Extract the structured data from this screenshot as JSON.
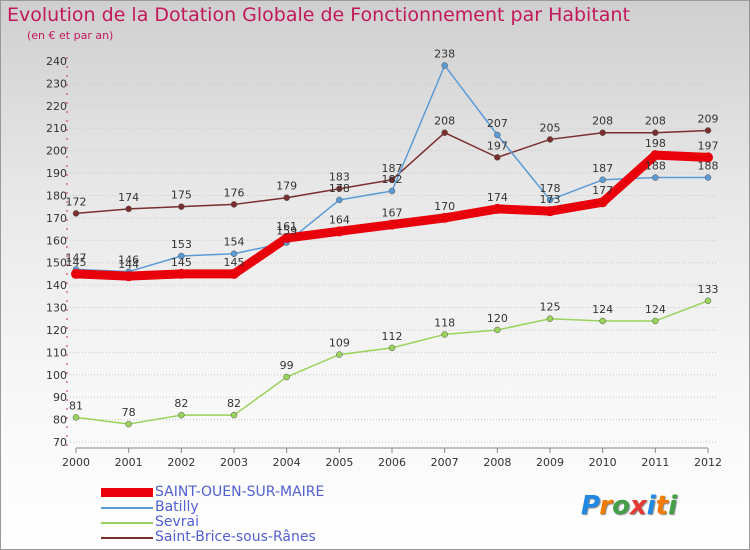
{
  "header": {
    "title": "Evolution de la Dotation Globale de Fonctionnement par Habitant",
    "subtitle": "(en € et par an)"
  },
  "logo": {
    "text": "Proxiti",
    "letters": [
      "P",
      "r",
      "o",
      "x",
      "i",
      "t",
      "i"
    ],
    "colors": [
      "#1e88e5",
      "#f57c00",
      "#43a047",
      "#e53935",
      "#1e88e5",
      "#f57c00",
      "#43a047"
    ]
  },
  "chart_data": {
    "type": "line",
    "title": "Evolution de la Dotation Globale de Fonctionnement par Habitant",
    "subtitle": "(en € et par an)",
    "xlabel": "",
    "ylabel": "",
    "x": [
      "2000",
      "2001",
      "2002",
      "2003",
      "2004",
      "2005",
      "2006",
      "2007",
      "2008",
      "2009",
      "2010",
      "2011",
      "2012"
    ],
    "ylim": [
      70,
      240
    ],
    "yticks": [
      70,
      80,
      90,
      100,
      110,
      120,
      130,
      140,
      150,
      160,
      170,
      180,
      190,
      200,
      210,
      220,
      230,
      240
    ],
    "grid": "horizontal dotted",
    "legend_position": "bottom-left",
    "series": [
      {
        "name": "SAINT-OUEN-SUR-MAIRE",
        "color": "#e8000b",
        "values": [
          145,
          144,
          145,
          145,
          161,
          164,
          167,
          170,
          174,
          173,
          177,
          198,
          197
        ]
      },
      {
        "name": "Batilly",
        "color": "#5b9bd5",
        "values": [
          147,
          146,
          153,
          154,
          159,
          178,
          182,
          238,
          207,
          178,
          187,
          188,
          188
        ]
      },
      {
        "name": "Sevrai",
        "color": "#9ad35b",
        "values": [
          81,
          78,
          82,
          82,
          99,
          109,
          112,
          118,
          120,
          125,
          124,
          124,
          133
        ]
      },
      {
        "name": "Saint-Brice-sous-Rânes",
        "color": "#7a2e2e",
        "values": [
          172,
          174,
          175,
          176,
          179,
          183,
          187,
          208,
          197,
          205,
          208,
          208,
          209
        ]
      }
    ]
  }
}
